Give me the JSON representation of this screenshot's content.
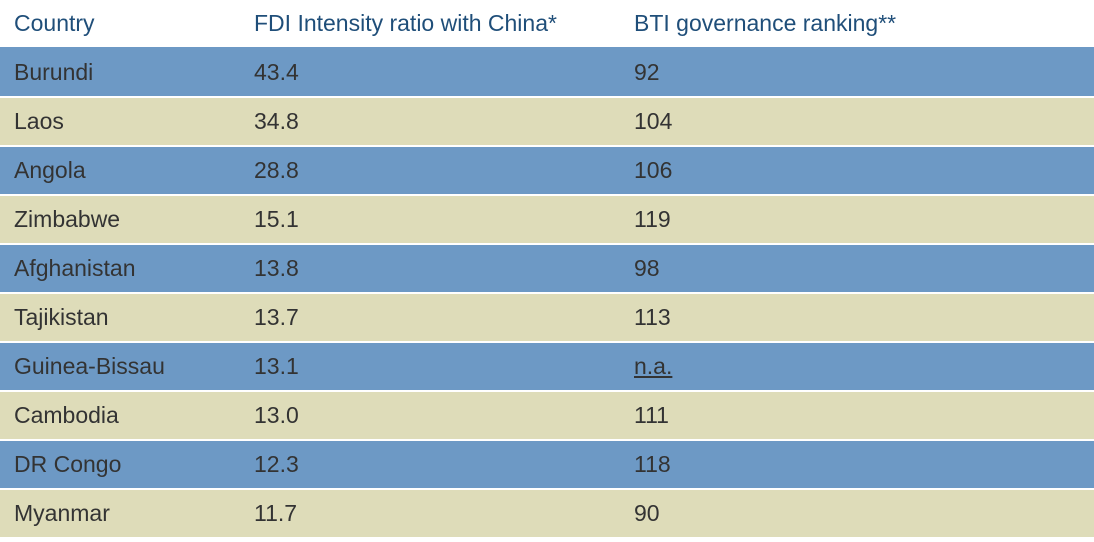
{
  "table": {
    "header_color": "#1f4e79",
    "header_border_color": "#6d99c5",
    "body_text_color": "#333333",
    "row_colors": {
      "odd": "#6d99c5",
      "even": "#dedcb9"
    },
    "columns": [
      {
        "key": "country",
        "label": "Country"
      },
      {
        "key": "fdi",
        "label": "FDI Intensity ratio with China*"
      },
      {
        "key": "bti",
        "label": "BTI governance ranking**"
      }
    ],
    "rows": [
      {
        "country": "Burundi",
        "fdi": "43.4",
        "bti": "92"
      },
      {
        "country": "Laos",
        "fdi": "34.8",
        "bti": "104"
      },
      {
        "country": "Angola",
        "fdi": "28.8",
        "bti": "106"
      },
      {
        "country": "Zimbabwe",
        "fdi": "15.1",
        "bti": "119"
      },
      {
        "country": "Afghanistan",
        "fdi": "13.8",
        "bti": "98"
      },
      {
        "country": "Tajikistan",
        "fdi": "13.7",
        "bti": "113"
      },
      {
        "country": "Guinea-Bissau",
        "fdi": "13.1",
        "bti": "n.a.",
        "bti_underline": true
      },
      {
        "country": "Cambodia",
        "fdi": "13.0",
        "bti": "111"
      },
      {
        "country": "DR Congo",
        "fdi": "12.3",
        "bti": "118"
      },
      {
        "country": "Myanmar",
        "fdi": "11.7",
        "bti": "90"
      }
    ]
  }
}
